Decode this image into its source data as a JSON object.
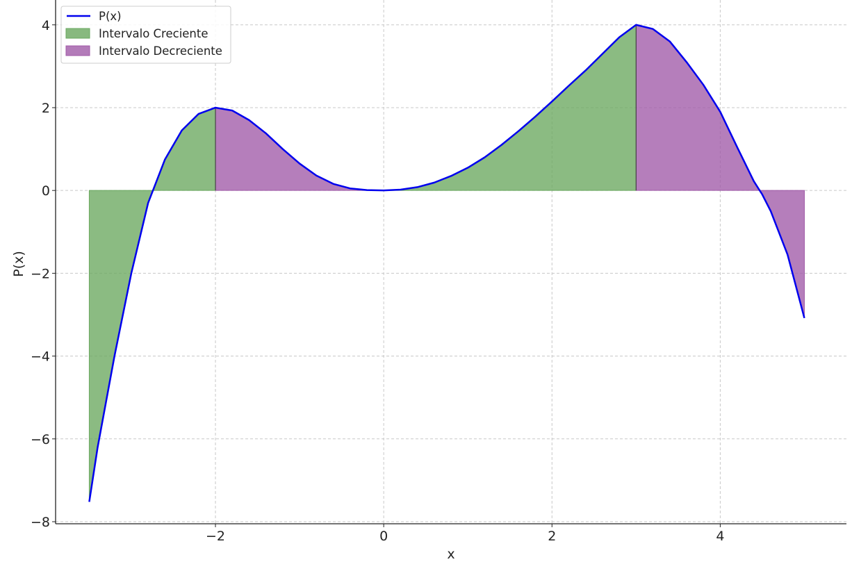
{
  "chart_data": {
    "type": "line",
    "title": "",
    "xlabel": "x",
    "ylabel": "P(x)",
    "xlim": [
      -3.9,
      5.5
    ],
    "ylim": [
      -8.05,
      4.6
    ],
    "xticks": [
      -2,
      0,
      2,
      4
    ],
    "yticks": [
      -8,
      -6,
      -4,
      -2,
      0,
      2,
      4
    ],
    "xtick_labels": [
      "−2",
      "0",
      "2",
      "4"
    ],
    "ytick_labels": [
      "−8",
      "−6",
      "−4",
      "−2",
      "0",
      "2",
      "4"
    ],
    "grid": true,
    "legend_position": "top-left",
    "x_domain": [
      -3.5,
      5
    ],
    "series": [
      {
        "name": "P(x)",
        "kind": "line",
        "color": "#0000ee",
        "points": [
          [
            -3.5,
            -7.52
          ],
          [
            -3.4,
            -6.2
          ],
          [
            -3.2,
            -4.0
          ],
          [
            -3.0,
            -2.0
          ],
          [
            -2.8,
            -0.3
          ],
          [
            -2.6,
            0.75
          ],
          [
            -2.4,
            1.45
          ],
          [
            -2.2,
            1.85
          ],
          [
            -2.0,
            2.0
          ],
          [
            -1.8,
            1.93
          ],
          [
            -1.6,
            1.7
          ],
          [
            -1.4,
            1.38
          ],
          [
            -1.2,
            1.0
          ],
          [
            -1.0,
            0.65
          ],
          [
            -0.8,
            0.36
          ],
          [
            -0.6,
            0.16
          ],
          [
            -0.4,
            0.05
          ],
          [
            -0.2,
            0.01
          ],
          [
            0.0,
            0.0
          ],
          [
            0.2,
            0.02
          ],
          [
            0.4,
            0.08
          ],
          [
            0.6,
            0.19
          ],
          [
            0.8,
            0.35
          ],
          [
            1.0,
            0.55
          ],
          [
            1.2,
            0.8
          ],
          [
            1.4,
            1.1
          ],
          [
            1.6,
            1.43
          ],
          [
            1.8,
            1.78
          ],
          [
            2.0,
            2.15
          ],
          [
            2.2,
            2.53
          ],
          [
            2.4,
            2.9
          ],
          [
            2.6,
            3.3
          ],
          [
            2.8,
            3.7
          ],
          [
            3.0,
            4.0
          ],
          [
            3.2,
            3.9
          ],
          [
            3.4,
            3.6
          ],
          [
            3.6,
            3.1
          ],
          [
            3.8,
            2.55
          ],
          [
            4.0,
            1.9
          ],
          [
            4.2,
            1.05
          ],
          [
            4.4,
            0.22
          ],
          [
            4.5,
            -0.1
          ],
          [
            4.6,
            -0.5
          ],
          [
            4.8,
            -1.55
          ],
          [
            5.0,
            -3.08
          ]
        ]
      },
      {
        "name": "Intervalo Creciente",
        "kind": "fill",
        "color": "#6aa85f",
        "intervals": [
          [
            -3.5,
            -2.0
          ],
          [
            0.0,
            3.0
          ]
        ]
      },
      {
        "name": "Intervalo Decreciente",
        "kind": "fill",
        "color": "#a05aa8",
        "intervals": [
          [
            -2.0,
            0.0
          ],
          [
            3.0,
            5.0
          ]
        ]
      }
    ]
  }
}
